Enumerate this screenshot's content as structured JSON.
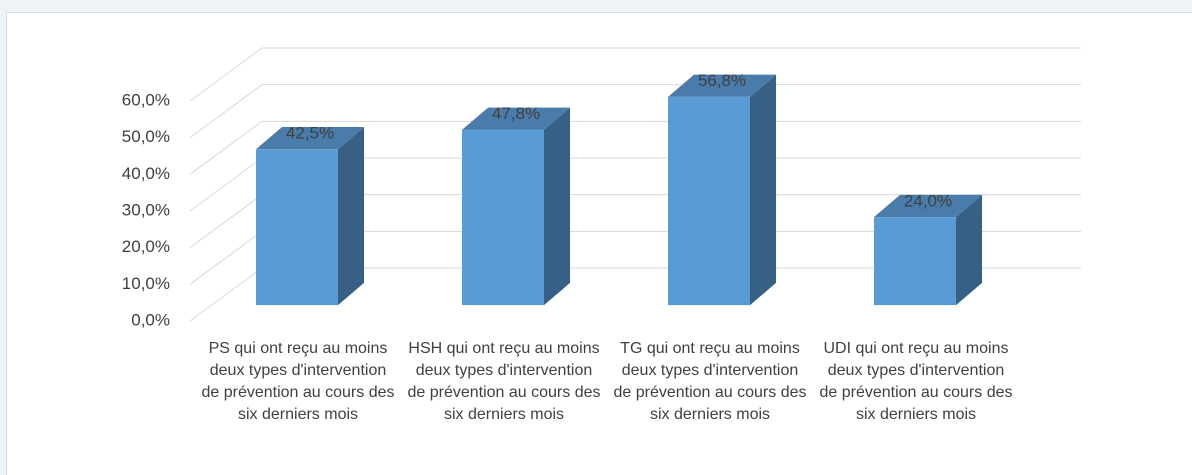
{
  "chart_data": {
    "type": "bar3d",
    "categories": [
      "PS qui ont reçu au moins deux types d'intervention de prévention au cours des six derniers mois",
      "HSH qui ont reçu au moins deux types d'intervention de prévention au cours des six derniers mois",
      "TG qui ont reçu au moins deux types d'intervention de prévention au cours des six derniers mois",
      "UDI qui ont reçu au moins deux types d'intervention de prévention au cours des six derniers mois"
    ],
    "values": [
      42.5,
      47.8,
      56.8,
      24.0
    ],
    "value_labels": [
      "42,5%",
      "47,8%",
      "56,8%",
      "24,0%"
    ],
    "color": "#5b9bd5",
    "ylim": [
      0,
      60
    ],
    "yticks": [
      {
        "value": 0,
        "label": "0,0%"
      },
      {
        "value": 10,
        "label": "10,0%"
      },
      {
        "value": 20,
        "label": "20,0%"
      },
      {
        "value": 30,
        "label": "30,0%"
      },
      {
        "value": 40,
        "label": "40,0%"
      },
      {
        "value": 50,
        "label": "50,0%"
      },
      {
        "value": 60,
        "label": "60,0%"
      }
    ],
    "grid": true
  }
}
